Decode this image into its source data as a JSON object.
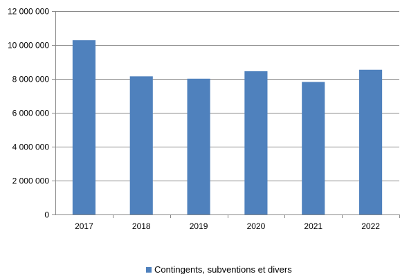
{
  "chart_data": {
    "type": "bar",
    "categories": [
      "2017",
      "2018",
      "2019",
      "2020",
      "2021",
      "2022"
    ],
    "series": [
      {
        "name": "Contingents, subventions et divers",
        "values": [
          10280000,
          8150000,
          8010000,
          8450000,
          7820000,
          8540000
        ],
        "color": "#4f81bd"
      }
    ],
    "ylim": [
      0,
      12000000
    ],
    "y_ticks": [
      {
        "value": 0,
        "label": "0"
      },
      {
        "value": 2000000,
        "label": "2 000 000"
      },
      {
        "value": 4000000,
        "label": "4 000 000"
      },
      {
        "value": 6000000,
        "label": "6 000 000"
      },
      {
        "value": 8000000,
        "label": "8 000 000"
      },
      {
        "value": 10000000,
        "label": "10 000 000"
      },
      {
        "value": 12000000,
        "label": "12 000 000"
      }
    ],
    "grid": true,
    "legend_position": "bottom",
    "title": "",
    "xlabel": "",
    "ylabel": ""
  }
}
